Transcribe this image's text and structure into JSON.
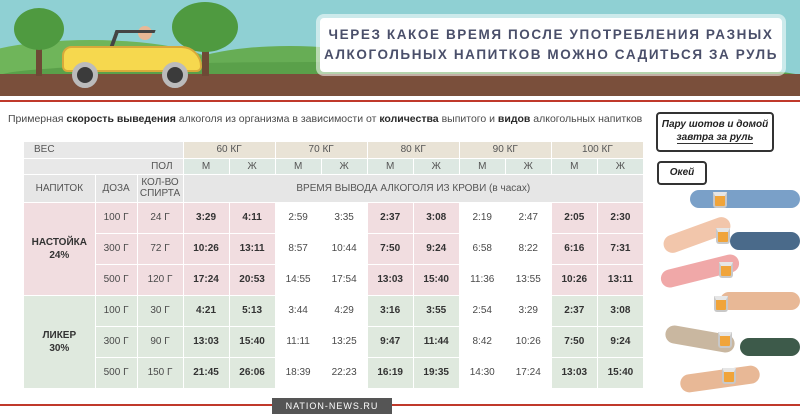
{
  "banner": {
    "title_line1": "ЧЕРЕЗ КАКОЕ ВРЕМЯ ПОСЛЕ УПОТРЕБЛЕНИЯ РАЗНЫХ",
    "title_line2": "АЛКОГОЛЬНЫХ НАПИТКОВ МОЖНО САДИТЬСЯ ЗА РУЛЬ"
  },
  "subtitle": {
    "p1": "Примерная ",
    "b1": "скорость выведения",
    "p2": " алкоголя из организма в зависимости от ",
    "b2": "количества",
    "p3": " выпитого и ",
    "b3": "видов",
    "p4": " алкогольных напитков"
  },
  "table": {
    "weight_label": "ВЕС",
    "sex_label": "ПОЛ",
    "weights": [
      "60 КГ",
      "70 КГ",
      "80 КГ",
      "90 КГ",
      "100 КГ"
    ],
    "sexes": [
      "М",
      "Ж"
    ],
    "col_drink": "НАПИТОК",
    "col_dose": "ДОЗА",
    "col_spirit_1": "КОЛ-ВО",
    "col_spirit_2": "СПИРТА",
    "time_header": "ВРЕМЯ ВЫВОДА АЛКОГОЛЯ ИЗ КРОВИ (в часах)",
    "groups": [
      {
        "name_1": "НАСТОЙКА",
        "name_2": "24%",
        "rows": [
          {
            "dose": "100 Г",
            "spirit": "24 Г",
            "times": [
              "3:29",
              "4:11",
              "2:59",
              "3:35",
              "2:37",
              "3:08",
              "2:19",
              "2:47",
              "2:05",
              "2:30"
            ]
          },
          {
            "dose": "300 Г",
            "spirit": "72 Г",
            "times": [
              "10:26",
              "13:11",
              "8:57",
              "10:44",
              "7:50",
              "9:24",
              "6:58",
              "8:22",
              "6:16",
              "7:31"
            ]
          },
          {
            "dose": "500 Г",
            "spirit": "120 Г",
            "times": [
              "17:24",
              "20:53",
              "14:55",
              "17:54",
              "13:03",
              "15:40",
              "11:36",
              "13:55",
              "10:26",
              "13:11"
            ]
          }
        ]
      },
      {
        "name_1": "ЛИКЕР",
        "name_2": "30%",
        "rows": [
          {
            "dose": "100 Г",
            "spirit": "30 Г",
            "times": [
              "4:21",
              "5:13",
              "3:44",
              "4:29",
              "3:16",
              "3:55",
              "2:54",
              "3:29",
              "2:37",
              "3:08"
            ]
          },
          {
            "dose": "300 Г",
            "spirit": "90 Г",
            "times": [
              "13:03",
              "15:40",
              "11:11",
              "13:25",
              "9:47",
              "11:44",
              "8:42",
              "10:26",
              "7:50",
              "9:24"
            ]
          },
          {
            "dose": "500 Г",
            "spirit": "150 Г",
            "times": [
              "21:45",
              "26:06",
              "18:39",
              "22:23",
              "16:19",
              "19:35",
              "14:30",
              "17:24",
              "13:03",
              "15:40"
            ]
          }
        ]
      }
    ]
  },
  "bubbles": {
    "bubble1_line1": "Пару шотов и домой",
    "bubble1_line2": "завтра за руль",
    "bubble2": "Окей"
  },
  "footer": {
    "source": "NATION-NEWS.RU"
  },
  "colors": {
    "accent_red": "#c0392b",
    "sky": "#8fd0d3",
    "pink_group": "#f1dde0",
    "green_group": "#dfe9de"
  }
}
